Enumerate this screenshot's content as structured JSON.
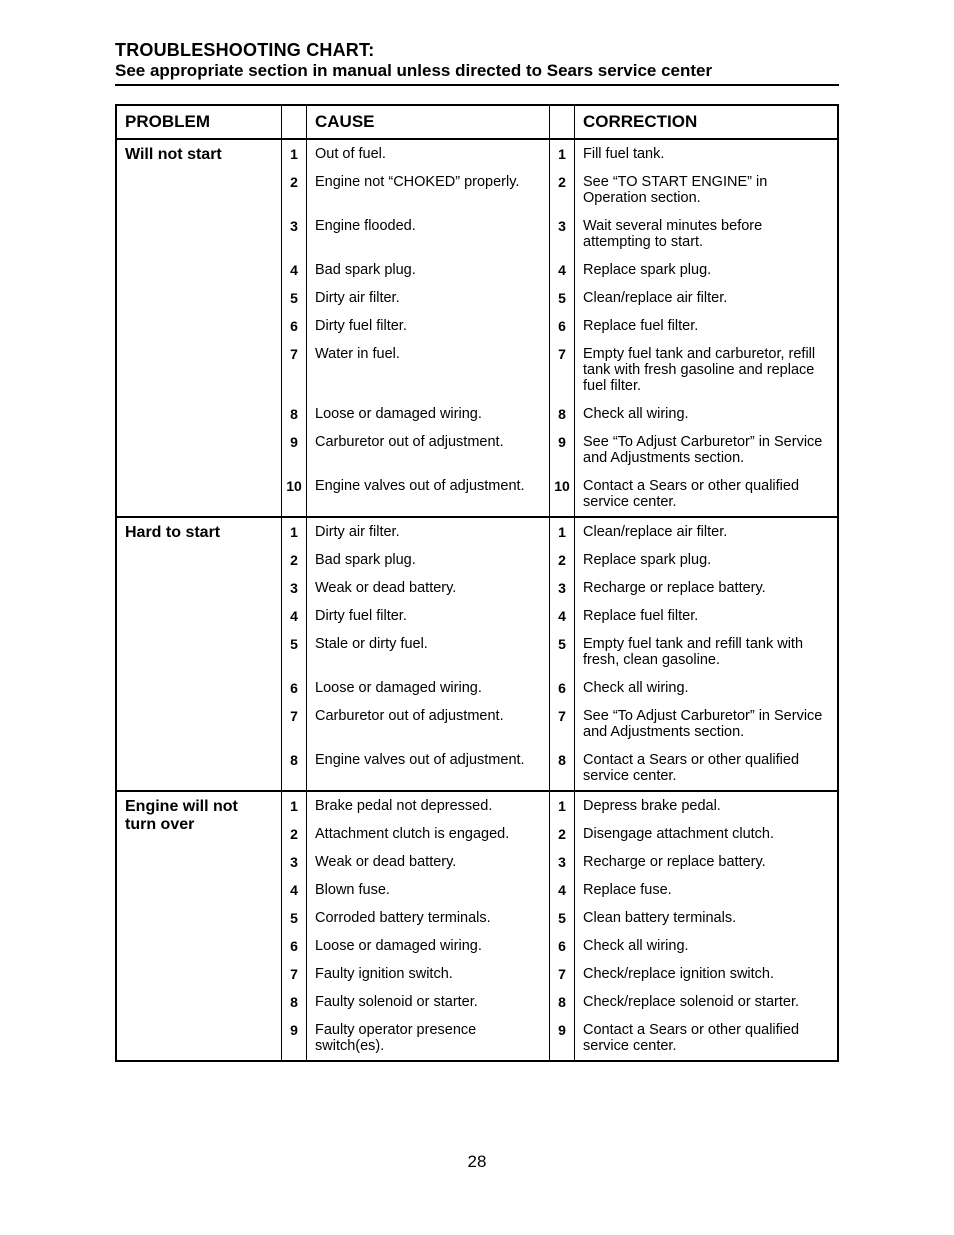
{
  "header": {
    "title": "TROUBLESHOOTING CHART:",
    "subtitle": "See appropriate section in manual unless directed to Sears service center"
  },
  "columns": {
    "problem": "PROBLEM",
    "cause": "CAUSE",
    "correction": "CORRECTION"
  },
  "sections": [
    {
      "problem": "Will not start",
      "items": [
        {
          "n": "1",
          "cause": "Out of fuel.",
          "correction": "Fill fuel tank."
        },
        {
          "n": "2",
          "cause": "Engine not “CHOKED” properly.",
          "correction": "See “TO START ENGINE” in Operation section."
        },
        {
          "n": "3",
          "cause": "Engine flooded.",
          "correction": "Wait several minutes before attempting to start."
        },
        {
          "n": "4",
          "cause": "Bad spark plug.",
          "correction": "Replace spark plug."
        },
        {
          "n": "5",
          "cause": "Dirty air filter.",
          "correction": "Clean/replace air filter."
        },
        {
          "n": "6",
          "cause": "Dirty fuel filter.",
          "correction": "Replace fuel filter."
        },
        {
          "n": "7",
          "cause": "Water in fuel.",
          "correction": "Empty fuel tank and carburetor, refill tank with fresh gasoline and replace fuel filter."
        },
        {
          "n": "8",
          "cause": "Loose or damaged wiring.",
          "correction": "Check all wiring."
        },
        {
          "n": "9",
          "cause": "Carburetor out of adjustment.",
          "correction": "See “To Adjust Carburetor” in Service and Adjustments section."
        },
        {
          "n": "10",
          "cause": "Engine valves out of adjustment.",
          "correction": "Contact a Sears or other qualified service center."
        }
      ]
    },
    {
      "problem": "Hard to start",
      "items": [
        {
          "n": "1",
          "cause": "Dirty air filter.",
          "correction": "Clean/replace air filter."
        },
        {
          "n": "2",
          "cause": "Bad spark plug.",
          "correction": "Replace spark plug."
        },
        {
          "n": "3",
          "cause": "Weak or dead battery.",
          "correction": "Recharge or replace battery."
        },
        {
          "n": "4",
          "cause": "Dirty fuel filter.",
          "correction": "Replace fuel filter."
        },
        {
          "n": "5",
          "cause": "Stale or dirty fuel.",
          "correction": "Empty fuel tank and refill tank with fresh, clean gasoline."
        },
        {
          "n": "6",
          "cause": "Loose or damaged wiring.",
          "correction": "Check all wiring."
        },
        {
          "n": "7",
          "cause": "Carburetor out of adjustment.",
          "correction": "See “To Adjust Carburetor” in Service and Adjustments section."
        },
        {
          "n": "8",
          "cause": "Engine valves out of adjustment.",
          "correction": "Contact a Sears or other qualified service center."
        }
      ]
    },
    {
      "problem": "Engine will not turn over",
      "items": [
        {
          "n": "1",
          "cause": "Brake pedal not depressed.",
          "correction": "Depress brake pedal."
        },
        {
          "n": "2",
          "cause": "Attachment clutch is engaged.",
          "correction": "Disengage attachment clutch."
        },
        {
          "n": "3",
          "cause": "Weak or dead battery.",
          "correction": "Recharge or replace battery."
        },
        {
          "n": "4",
          "cause": "Blown fuse.",
          "correction": "Replace fuse."
        },
        {
          "n": "5",
          "cause": "Corroded battery terminals.",
          "correction": "Clean battery terminals."
        },
        {
          "n": "6",
          "cause": "Loose or damaged wiring.",
          "correction": "Check all wiring."
        },
        {
          "n": "7",
          "cause": "Faulty ignition switch.",
          "correction": "Check/replace ignition switch."
        },
        {
          "n": "8",
          "cause": "Faulty solenoid or starter.",
          "correction": "Check/replace solenoid or starter."
        },
        {
          "n": "9",
          "cause": "Faulty operator presence switch(es).",
          "correction": "Contact a Sears or other qualified service center."
        }
      ]
    }
  ],
  "page_number": "28"
}
